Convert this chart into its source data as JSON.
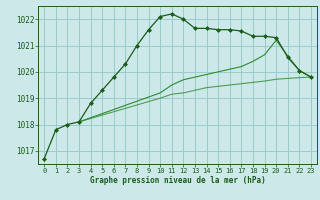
{
  "background_color": "#cce8e8",
  "grid_color": "#99cccc",
  "line_color_dark": "#1a5c1a",
  "line_color_mid": "#2e8b2e",
  "xlabel": "Graphe pression niveau de la mer (hPa)",
  "ylim": [
    1016.5,
    1022.5
  ],
  "xlim": [
    -0.5,
    23.5
  ],
  "yticks": [
    1017,
    1018,
    1019,
    1020,
    1021,
    1022
  ],
  "xticks": [
    0,
    1,
    2,
    3,
    4,
    5,
    6,
    7,
    8,
    9,
    10,
    11,
    12,
    13,
    14,
    15,
    16,
    17,
    18,
    19,
    20,
    21,
    22,
    23
  ],
  "series1_x": [
    0,
    1,
    2,
    3,
    4,
    5,
    6,
    7,
    8,
    9,
    10,
    11,
    12,
    13,
    14,
    15,
    16,
    17,
    18,
    19,
    20,
    21,
    22,
    23
  ],
  "series1_y": [
    1016.7,
    1017.8,
    1018.0,
    1018.1,
    1018.8,
    1019.3,
    1019.8,
    1020.3,
    1021.0,
    1021.6,
    1022.1,
    1022.2,
    1022.0,
    1021.65,
    1021.65,
    1021.6,
    1021.6,
    1021.55,
    1021.35,
    1021.35,
    1021.3,
    1020.55,
    1020.05,
    1019.8
  ],
  "series2_x": [
    3,
    10,
    11,
    12,
    13,
    14,
    15,
    16,
    17,
    18,
    19,
    20,
    21,
    22,
    23
  ],
  "series2_y": [
    1018.1,
    1019.2,
    1019.5,
    1019.7,
    1019.8,
    1019.9,
    1020.0,
    1020.1,
    1020.2,
    1020.4,
    1020.65,
    1021.2,
    1020.6,
    1020.05,
    1019.8
  ],
  "series3_x": [
    3,
    10,
    11,
    12,
    13,
    14,
    15,
    16,
    17,
    18,
    19,
    20,
    21,
    22,
    23
  ],
  "series3_y": [
    1018.1,
    1019.0,
    1019.15,
    1019.2,
    1019.3,
    1019.4,
    1019.45,
    1019.5,
    1019.55,
    1019.6,
    1019.65,
    1019.72,
    1019.75,
    1019.78,
    1019.8
  ]
}
